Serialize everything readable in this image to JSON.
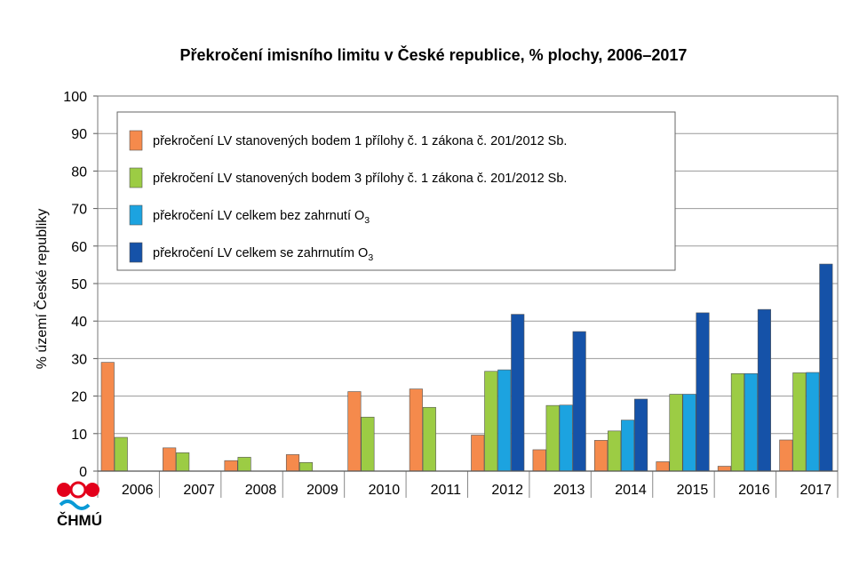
{
  "chart_data": {
    "type": "bar",
    "title": "Překročení imisního limitu v České republice, % plochy, 2006–2017",
    "ylabel": "% území České republiky",
    "xlabel": "",
    "ylim": [
      0,
      100
    ],
    "yticks": [
      0,
      10,
      20,
      30,
      40,
      50,
      60,
      70,
      80,
      90,
      100
    ],
    "grid": true,
    "legend_position": "top-left",
    "categories": [
      "2006",
      "2007",
      "2008",
      "2009",
      "2010",
      "2011",
      "2012",
      "2013",
      "2014",
      "2015",
      "2016",
      "2017"
    ],
    "series": [
      {
        "name": "překročení LV stanovených bodem 1 přílohy č. 1 zákona č. 201/2012 Sb.",
        "color": "#f58a4c",
        "values": [
          29,
          6.2,
          2.8,
          4.4,
          21.2,
          21.9,
          9.6,
          5.7,
          8.2,
          2.5,
          1.3,
          8.3
        ]
      },
      {
        "name": "překročení LV stanovených bodem 3 přílohy č. 1 zákona č. 201/2012 Sb.",
        "color": "#9ccc44",
        "values": [
          9,
          4.9,
          3.7,
          2.3,
          14.4,
          17,
          26.6,
          17.5,
          10.7,
          20.5,
          26,
          26.2
        ]
      },
      {
        "name": "překročení LV celkem bez zahrnutí O",
        "name_subscript": "3",
        "color": "#1ca3e0",
        "values": [
          null,
          null,
          null,
          null,
          null,
          null,
          27,
          17.6,
          13.6,
          20.5,
          26,
          26.3
        ]
      },
      {
        "name": "překročení LV celkem se zahrnutím O",
        "name_subscript": "3",
        "color": "#1552a8",
        "values": [
          null,
          null,
          null,
          null,
          null,
          null,
          41.8,
          37.2,
          19.2,
          42.2,
          43.1,
          55.2
        ]
      }
    ]
  },
  "logo": {
    "text": "ČHMÚ",
    "colors": [
      "#e3001b",
      "#0a9ad6"
    ]
  }
}
